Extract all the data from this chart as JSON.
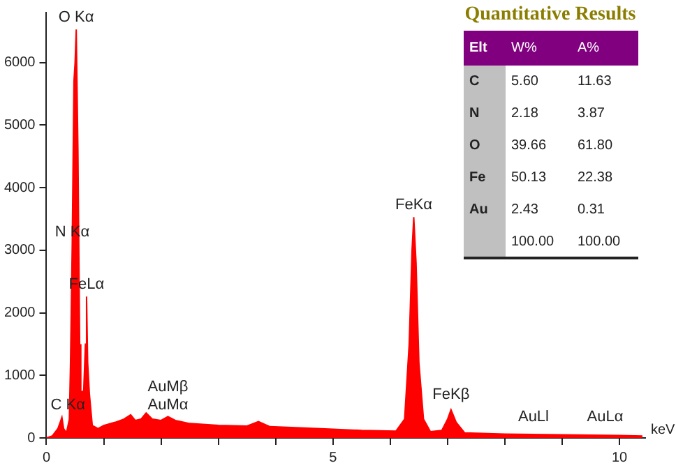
{
  "chart_data": {
    "type": "area",
    "xlabel": "keV",
    "color": "#ff0000",
    "grid": false,
    "legend": false,
    "marker": "none",
    "x": [
      0,
      0.1,
      0.2,
      0.24,
      0.27,
      0.3,
      0.35,
      0.4,
      0.42,
      0.45,
      0.48,
      0.5,
      0.52,
      0.55,
      0.58,
      0.6,
      0.65,
      0.68,
      0.7,
      0.72,
      0.75,
      0.8,
      0.9,
      1.0,
      1.2,
      1.35,
      1.47,
      1.55,
      1.65,
      1.74,
      1.85,
      2.0,
      2.12,
      2.25,
      2.5,
      3.0,
      3.5,
      3.7,
      3.9,
      4.5,
      5.0,
      5.5,
      6.1,
      6.25,
      6.33,
      6.38,
      6.41,
      6.45,
      6.5,
      6.58,
      6.7,
      6.9,
      7.0,
      7.06,
      7.15,
      7.3,
      8.0,
      9.0,
      10.0,
      10.4
    ],
    "values": [
      0,
      30,
      150,
      250,
      330,
      150,
      80,
      300,
      1200,
      3100,
      5700,
      6000,
      6530,
      4600,
      1500,
      730,
      750,
      1500,
      2260,
      1200,
      700,
      200,
      150,
      200,
      250,
      300,
      370,
      280,
      300,
      400,
      300,
      280,
      340,
      280,
      230,
      200,
      190,
      260,
      180,
      160,
      140,
      120,
      110,
      300,
      1500,
      3000,
      3530,
      2800,
      1200,
      300,
      100,
      120,
      300,
      450,
      250,
      80,
      60,
      50,
      40,
      30
    ],
    "xlim": [
      0,
      10.45
    ],
    "xticks": [
      0,
      {
        "value": 1,
        "label": null
      },
      {
        "value": 2,
        "label": null
      },
      {
        "value": 3,
        "label": null
      },
      {
        "value": 4,
        "label": null
      },
      5,
      {
        "value": 6,
        "label": null
      },
      {
        "value": 7,
        "label": null
      },
      {
        "value": 8,
        "label": null
      },
      {
        "value": 9,
        "label": null
      },
      10
    ],
    "ylim": [
      0,
      6800
    ],
    "yticks": [
      0,
      1000,
      2000,
      3000,
      4000,
      5000,
      6000
    ],
    "annotations": [
      {
        "text": "O Kα",
        "x": 0.52,
        "y": 6530
      },
      {
        "text": "FeLα",
        "x": 0.7,
        "y": 2260
      },
      {
        "text": "N Kα",
        "x": 0.45,
        "y": 3100
      },
      {
        "text": "C Kα",
        "x": 0.27,
        "y": 330
      },
      {
        "text": "AuMβ",
        "x": 2.12,
        "y": 340
      },
      {
        "text": "AuMα",
        "x": 2.12,
        "y": 340
      },
      {
        "text": "FeKα",
        "x": 6.41,
        "y": 3530
      },
      {
        "text": "FeKβ",
        "x": 7.06,
        "y": 500
      },
      {
        "text": "AuLl",
        "x": 8.5,
        "y": 150
      },
      {
        "text": "AuLα",
        "x": 9.75,
        "y": 150
      },
      "Quantitative Results",
      "Elt",
      "W%",
      "A%",
      "C",
      "5.60",
      "11.63",
      "N",
      "2.18",
      "3.87",
      "O",
      "39.66",
      "61.80",
      "Fe",
      "50.13",
      "22.38",
      "Au",
      "2.43",
      "0.31",
      "100.00",
      "100.00"
    ]
  }
}
